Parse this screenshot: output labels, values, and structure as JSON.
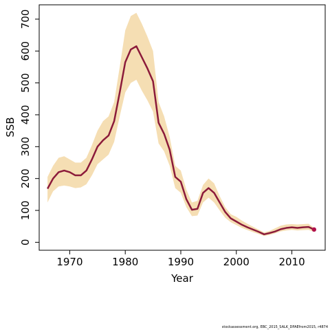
{
  "chart_data": {
    "type": "line",
    "title": "",
    "xlabel": "Year",
    "ylabel": "SSB",
    "xlim": [
      1964.5,
      2016
    ],
    "ylim": [
      -25,
      745
    ],
    "x_ticks": [
      1970,
      1980,
      1990,
      2000,
      2010
    ],
    "y_ticks": [
      0,
      100,
      200,
      300,
      400,
      500,
      600,
      700
    ],
    "grid": false,
    "legend": "none",
    "colors": {
      "line": "#8b1a3a",
      "band": "#f5deb3",
      "last_point": "#b0104a"
    },
    "x": [
      1966,
      1967,
      1968,
      1969,
      1970,
      1971,
      1972,
      1973,
      1974,
      1975,
      1976,
      1977,
      1978,
      1979,
      1980,
      1981,
      1982,
      1983,
      1984,
      1985,
      1986,
      1987,
      1988,
      1989,
      1990,
      1991,
      1992,
      1993,
      1994,
      1995,
      1996,
      1997,
      1998,
      1999,
      2000,
      2001,
      2002,
      2003,
      2004,
      2005,
      2006,
      2007,
      2008,
      2009,
      2010,
      2011,
      2012,
      2013,
      2014
    ],
    "series": [
      {
        "values": [
          168,
          200,
          220,
          225,
          220,
          210,
          210,
          225,
          260,
          300,
          320,
          335,
          380,
          470,
          565,
          605,
          615,
          580,
          545,
          505,
          375,
          340,
          290,
          205,
          190,
          135,
          102,
          105,
          155,
          170,
          155,
          125,
          95,
          75,
          65,
          55,
          47,
          40,
          33,
          25,
          29,
          34,
          41,
          45,
          47,
          45,
          47,
          48,
          40
        ]
      }
    ],
    "band_upper": [
      205,
      240,
      265,
      270,
      260,
      250,
      250,
      265,
      305,
      350,
      380,
      395,
      440,
      550,
      665,
      710,
      720,
      685,
      645,
      600,
      440,
      395,
      330,
      240,
      225,
      165,
      125,
      130,
      180,
      200,
      185,
      145,
      110,
      88,
      80,
      68,
      58,
      49,
      40,
      31,
      36,
      44,
      52,
      56,
      57,
      56,
      57,
      58,
      45
    ],
    "band_lower": [
      125,
      160,
      175,
      178,
      175,
      170,
      172,
      182,
      210,
      245,
      260,
      275,
      315,
      395,
      470,
      500,
      510,
      475,
      445,
      410,
      310,
      285,
      240,
      170,
      155,
      110,
      82,
      84,
      125,
      140,
      125,
      100,
      77,
      63,
      54,
      45,
      38,
      32,
      26,
      20,
      23,
      28,
      34,
      37,
      39,
      37,
      38,
      39,
      33
    ],
    "credit": "stockassessment.org, EBC_2015_SALK_DPAEfrom2015, r4874"
  }
}
